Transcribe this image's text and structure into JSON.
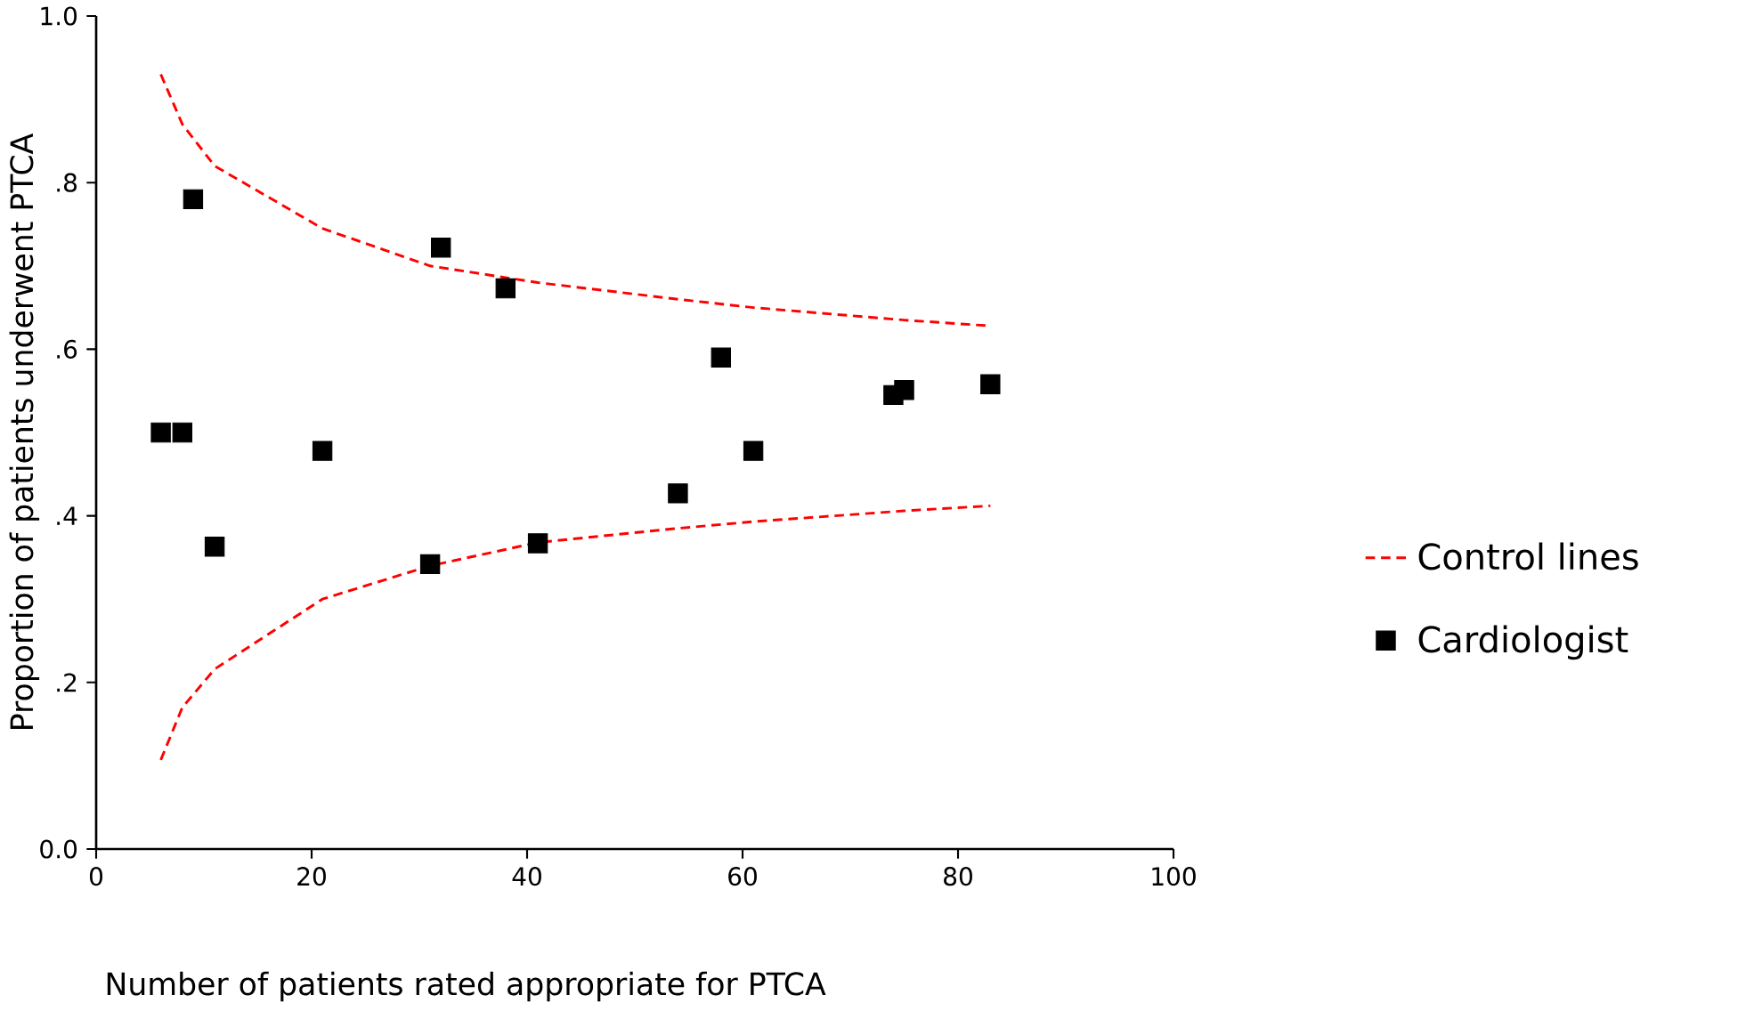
{
  "chart_data": {
    "type": "scatter",
    "xlabel": "Number of patients rated appropriate for PTCA",
    "ylabel": "Proportion of patients underwent PTCA",
    "xlim": [
      0,
      100
    ],
    "xticks": [
      0,
      20,
      40,
      60,
      80,
      100
    ],
    "ylim": [
      0,
      1
    ],
    "yticks": [
      {
        "value": 0,
        "label": "0.0"
      },
      {
        "value": 0.2,
        "label": ".2"
      },
      {
        "value": 0.4,
        "label": ".4"
      },
      {
        "value": 0.6,
        "label": ".6"
      },
      {
        "value": 0.8,
        "label": ".8"
      },
      {
        "value": 1,
        "label": "1.0"
      }
    ],
    "legend": "right",
    "series": [
      {
        "name": "Control lines",
        "type": "line",
        "line_style": "dashed",
        "color": "#ff0000",
        "x": [
          6,
          8,
          11,
          21,
          31,
          41,
          54,
          61,
          75,
          83
        ],
        "values": [
          0.93,
          0.87,
          0.82,
          0.745,
          0.7,
          0.68,
          0.66,
          0.65,
          0.635,
          0.628
        ]
      },
      {
        "type": "line",
        "line_style": "dashed",
        "color": "#ff0000",
        "x": [
          6,
          8,
          11,
          21,
          31,
          41,
          54,
          61,
          75,
          83
        ],
        "values": [
          0.107,
          0.17,
          0.216,
          0.3,
          0.34,
          0.368,
          0.385,
          0.393,
          0.406,
          0.412
        ]
      },
      {
        "name": "Cardiologist",
        "marker": "square",
        "color": "#000000",
        "x": [
          6,
          8,
          9,
          11,
          21,
          31,
          32,
          38,
          41,
          54,
          58,
          61,
          74,
          75,
          83
        ],
        "values": [
          0.5,
          0.5,
          0.78,
          0.363,
          0.478,
          0.342,
          0.722,
          0.673,
          0.367,
          0.427,
          0.59,
          0.478,
          0.545,
          0.551,
          0.558
        ]
      }
    ]
  }
}
